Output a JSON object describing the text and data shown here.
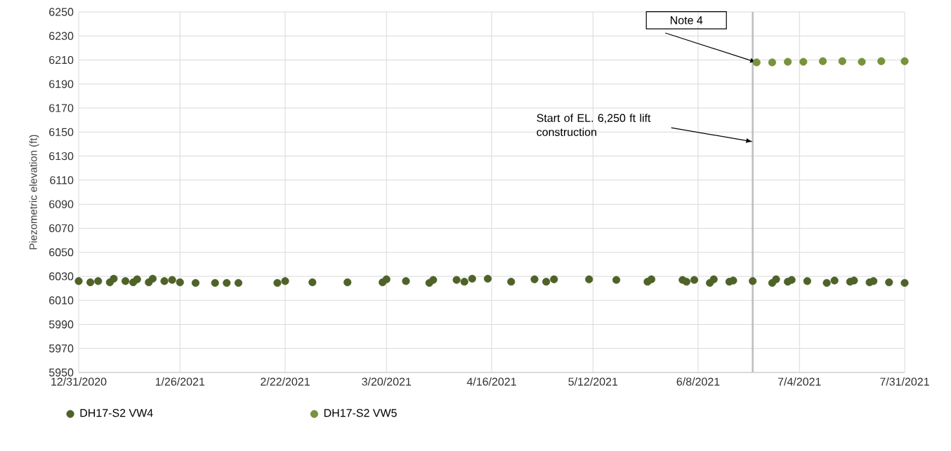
{
  "chart_data": {
    "type": "scatter",
    "ylabel": "Piezometric elevation (ft)",
    "xlim": [
      "2020-12-31",
      "2021-07-31"
    ],
    "xticks": [
      {
        "value": "2020-12-31",
        "label": "12/31/2020"
      },
      {
        "value": "2021-01-26",
        "label": "1/26/2021"
      },
      {
        "value": "2021-02-22",
        "label": "2/22/2021"
      },
      {
        "value": "2021-03-20",
        "label": "3/20/2021"
      },
      {
        "value": "2021-04-16",
        "label": "4/16/2021"
      },
      {
        "value": "2021-05-12",
        "label": "5/12/2021"
      },
      {
        "value": "2021-06-08",
        "label": "6/8/2021"
      },
      {
        "value": "2021-07-04",
        "label": "7/4/2021"
      },
      {
        "value": "2021-07-31",
        "label": "7/31/2021"
      }
    ],
    "ylim": [
      5950,
      6250
    ],
    "yticks": [
      5950,
      5970,
      5990,
      6010,
      6030,
      6050,
      6070,
      6090,
      6110,
      6130,
      6150,
      6170,
      6190,
      6210,
      6230,
      6250
    ],
    "grid": true,
    "legend": "bottom",
    "marker": "circle",
    "series": [
      {
        "name": "DH17-S2 VW4",
        "color": "#4f6228",
        "x": [
          "2020-12-31",
          "2021-01-03",
          "2021-01-05",
          "2021-01-08",
          "2021-01-09",
          "2021-01-12",
          "2021-01-14",
          "2021-01-15",
          "2021-01-18",
          "2021-01-19",
          "2021-01-22",
          "2021-01-24",
          "2021-01-26",
          "2021-01-30",
          "2021-02-04",
          "2021-02-07",
          "2021-02-10",
          "2021-02-20",
          "2021-02-22",
          "2021-03-01",
          "2021-03-10",
          "2021-03-19",
          "2021-03-20",
          "2021-03-25",
          "2021-03-31",
          "2021-04-01",
          "2021-04-07",
          "2021-04-09",
          "2021-04-11",
          "2021-04-15",
          "2021-04-21",
          "2021-04-27",
          "2021-04-30",
          "2021-05-02",
          "2021-05-11",
          "2021-05-18",
          "2021-05-26",
          "2021-05-27",
          "2021-06-04",
          "2021-06-05",
          "2021-06-07",
          "2021-06-11",
          "2021-06-12",
          "2021-06-16",
          "2021-06-17",
          "2021-06-22",
          "2021-06-27",
          "2021-06-28",
          "2021-07-01",
          "2021-07-02",
          "2021-07-06",
          "2021-07-11",
          "2021-07-13",
          "2021-07-17",
          "2021-07-18",
          "2021-07-22",
          "2021-07-23",
          "2021-07-27",
          "2021-07-31"
        ],
        "values": [
          6026,
          6025,
          6026,
          6025,
          6028,
          6026,
          6025,
          6027.5,
          6025,
          6028,
          6026,
          6027,
          6025,
          6024.5,
          6024.5,
          6024.5,
          6024.5,
          6024.5,
          6026,
          6025,
          6025,
          6025,
          6027.5,
          6026,
          6024.5,
          6027,
          6027,
          6025.5,
          6028,
          6028,
          6025.5,
          6027.5,
          6025.5,
          6027.5,
          6027.5,
          6027,
          6025.5,
          6027.5,
          6027,
          6025.5,
          6027,
          6024.5,
          6027.5,
          6025.5,
          6026.5,
          6026,
          6024.5,
          6027.5,
          6025.5,
          6027,
          6026,
          6024.5,
          6026.5,
          6025.5,
          6026.5,
          6025,
          6026,
          6025,
          6024.5
        ]
      },
      {
        "name": "DH17-S2 VW5",
        "color": "#77933c",
        "x": [
          "2021-06-23",
          "2021-06-27",
          "2021-07-01",
          "2021-07-05",
          "2021-07-10",
          "2021-07-15",
          "2021-07-20",
          "2021-07-25",
          "2021-07-31"
        ],
        "values": [
          6208,
          6208,
          6208.5,
          6208.5,
          6209,
          6209,
          6208.5,
          6209,
          6209
        ]
      }
    ],
    "ref_lines": [
      {
        "axis": "x",
        "value": "2021-06-22",
        "color": "#bfbfbf"
      }
    ],
    "annotations": [
      {
        "text": "Note 4",
        "x": "2021-06-23",
        "y": 6208
      },
      "Start of EL. 6,250 ft lift construction"
    ]
  }
}
